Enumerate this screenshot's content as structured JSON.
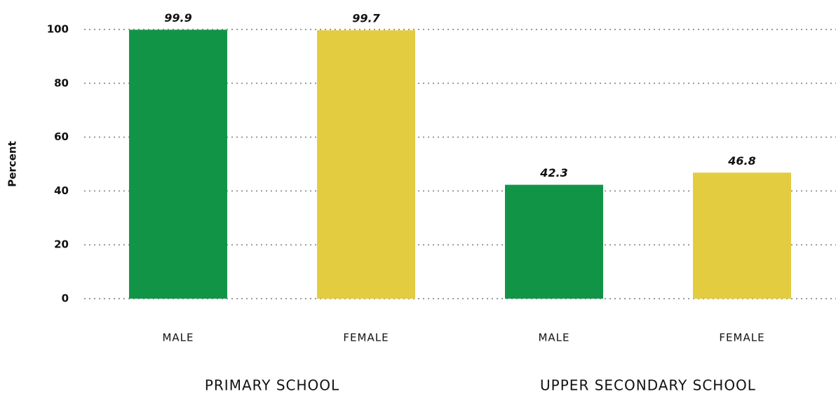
{
  "chart_data": {
    "type": "bar",
    "y_label": "Percent",
    "categories": [
      "MALE",
      "FEMALE",
      "MALE",
      "FEMALE"
    ],
    "groups": [
      "PRIMARY SCHOOL",
      "UPPER SECONDARY SCHOOL"
    ],
    "values": [
      99.9,
      99.7,
      42.3,
      46.8
    ],
    "colors": [
      "#129447",
      "#e4cc40",
      "#129447",
      "#e4cc40"
    ],
    "ylim": [
      0,
      100
    ],
    "yticks": [
      0,
      20,
      40,
      60,
      80,
      100
    ],
    "grid": true
  }
}
